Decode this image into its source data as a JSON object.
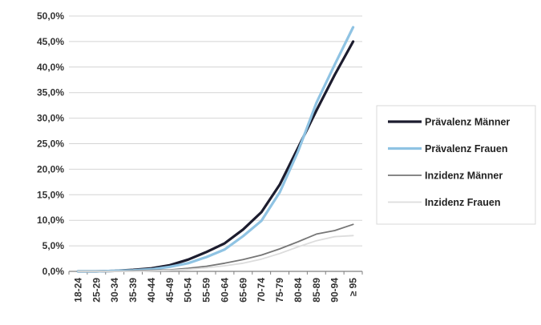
{
  "chart_data": {
    "type": "line",
    "title": "",
    "xlabel": "",
    "ylabel": "",
    "categories": [
      "18-24",
      "25-29",
      "30-34",
      "35-39",
      "40-44",
      "45-49",
      "50-54",
      "55-59",
      "60-64",
      "65-69",
      "70-74",
      "75-79",
      "80-84",
      "85-89",
      "90-94",
      "≥ 95"
    ],
    "ylim": [
      0,
      50
    ],
    "yticks": [
      0,
      5,
      10,
      15,
      20,
      25,
      30,
      35,
      40,
      45,
      50
    ],
    "ytick_labels": [
      "0,0%",
      "5,0%",
      "10,0%",
      "15,0%",
      "20,0%",
      "25,0%",
      "30,0%",
      "35,0%",
      "40,0%",
      "45,0%",
      "50,0%"
    ],
    "grid": true,
    "legend_position": "right",
    "series": [
      {
        "name": "Prävalenz Männer",
        "color": "#1c1c2e",
        "width": 3.2,
        "values": [
          0.0,
          0.0,
          0.1,
          0.3,
          0.6,
          1.2,
          2.3,
          3.8,
          5.5,
          8.2,
          11.6,
          17.0,
          24.2,
          31.5,
          38.5,
          45.0
        ]
      },
      {
        "name": "Prävalenz  Frauen",
        "color": "#8fc3e3",
        "width": 3.2,
        "values": [
          0.0,
          0.0,
          0.1,
          0.2,
          0.4,
          0.9,
          1.6,
          2.8,
          4.3,
          6.9,
          9.9,
          15.5,
          23.5,
          33.0,
          40.5,
          47.8
        ]
      },
      {
        "name": "Inzidenz Männer",
        "color": "#767676",
        "width": 1.8,
        "values": [
          0.0,
          0.0,
          0.0,
          0.1,
          0.2,
          0.3,
          0.6,
          1.0,
          1.6,
          2.3,
          3.2,
          4.4,
          5.8,
          7.3,
          8.0,
          9.2
        ]
      },
      {
        "name": "Inzidenz Frauen",
        "color": "#dcdcdc",
        "width": 1.8,
        "values": [
          0.0,
          0.0,
          0.0,
          0.0,
          0.1,
          0.2,
          0.4,
          0.7,
          1.1,
          1.6,
          2.4,
          3.5,
          4.8,
          6.0,
          6.8,
          7.0
        ]
      }
    ]
  }
}
